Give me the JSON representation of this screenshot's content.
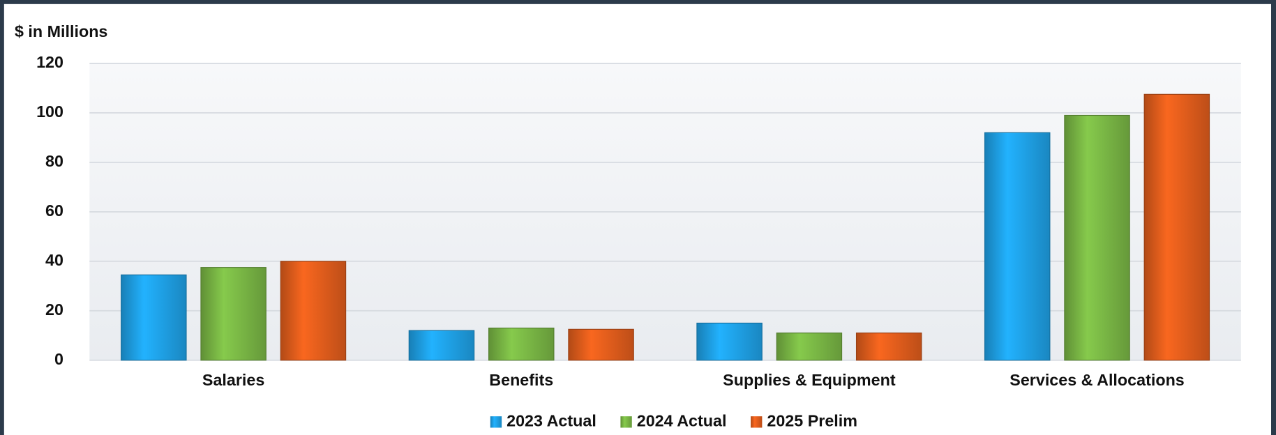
{
  "chart_data": {
    "type": "bar",
    "y_axis_label": "$ in Millions",
    "categories": [
      "Salaries",
      "Benefits",
      "Supplies & Equipment",
      "Services & Allocations"
    ],
    "series": [
      {
        "name": "2023 Actual",
        "color": "#1e9fe3",
        "values": [
          34.5,
          12,
          15,
          92
        ]
      },
      {
        "name": "2024 Actual",
        "color": "#78b444",
        "values": [
          37.5,
          13,
          11,
          99
        ]
      },
      {
        "name": "2025 Prelim",
        "color": "#de5c1c",
        "values": [
          40,
          12.5,
          11,
          107.5
        ]
      }
    ],
    "ylim": [
      0,
      120
    ],
    "yticks": [
      0,
      20,
      40,
      60,
      80,
      100,
      120
    ],
    "grid": true,
    "legend": "bottom"
  }
}
